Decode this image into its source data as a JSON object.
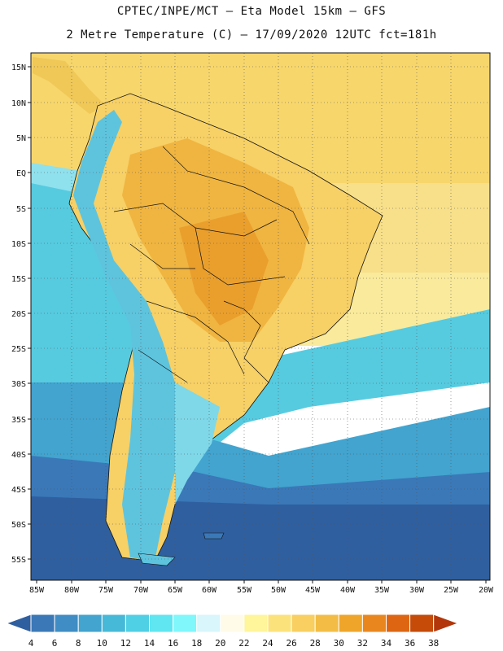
{
  "title_line1": "CPTEC/INPE/MCT –  Eta Model 15km – GFS",
  "title_line2": "2 Metre Temperature (C) – 17/09/2020 12UTC fct=181h",
  "lat_labels": [
    "15N",
    "10N",
    "5N",
    "EQ",
    "5S",
    "10S",
    "15S",
    "20S",
    "25S",
    "30S",
    "35S",
    "40S",
    "45S",
    "50S",
    "55S"
  ],
  "lon_labels": [
    "85W",
    "80W",
    "75W",
    "70W",
    "65W",
    "60W",
    "55W",
    "50W",
    "45W",
    "40W",
    "35W",
    "30W",
    "25W",
    "20W"
  ],
  "colorbar": {
    "ticks": [
      "4",
      "6",
      "8",
      "10",
      "12",
      "14",
      "16",
      "18",
      "20",
      "22",
      "24",
      "26",
      "28",
      "30",
      "32",
      "34",
      "36",
      "38"
    ],
    "colors": [
      "#2f5f9f",
      "#3a78b8",
      "#3f8dc4",
      "#42a4cf",
      "#47b9d8",
      "#4fd0e4",
      "#5fe6f0",
      "#7ff7fb",
      "#d8f6fb",
      "#fffbe8",
      "#fff59a",
      "#fce27a",
      "#f8cf60",
      "#f3bd45",
      "#efa52a",
      "#e9871e",
      "#de6612",
      "#c64a08",
      "#b2360a"
    ]
  },
  "map_colors": {
    "ocean_warm": "#f7d66c",
    "ocean_mid": "#f9ea9c",
    "ocean_cool": "#56cbe0",
    "ocean_cold": "#3f8dc4",
    "ocean_deep": "#2f5f9f",
    "land_hot": "#f0b540",
    "land_warm": "#f7d066",
    "andes": "#5ec4de"
  }
}
